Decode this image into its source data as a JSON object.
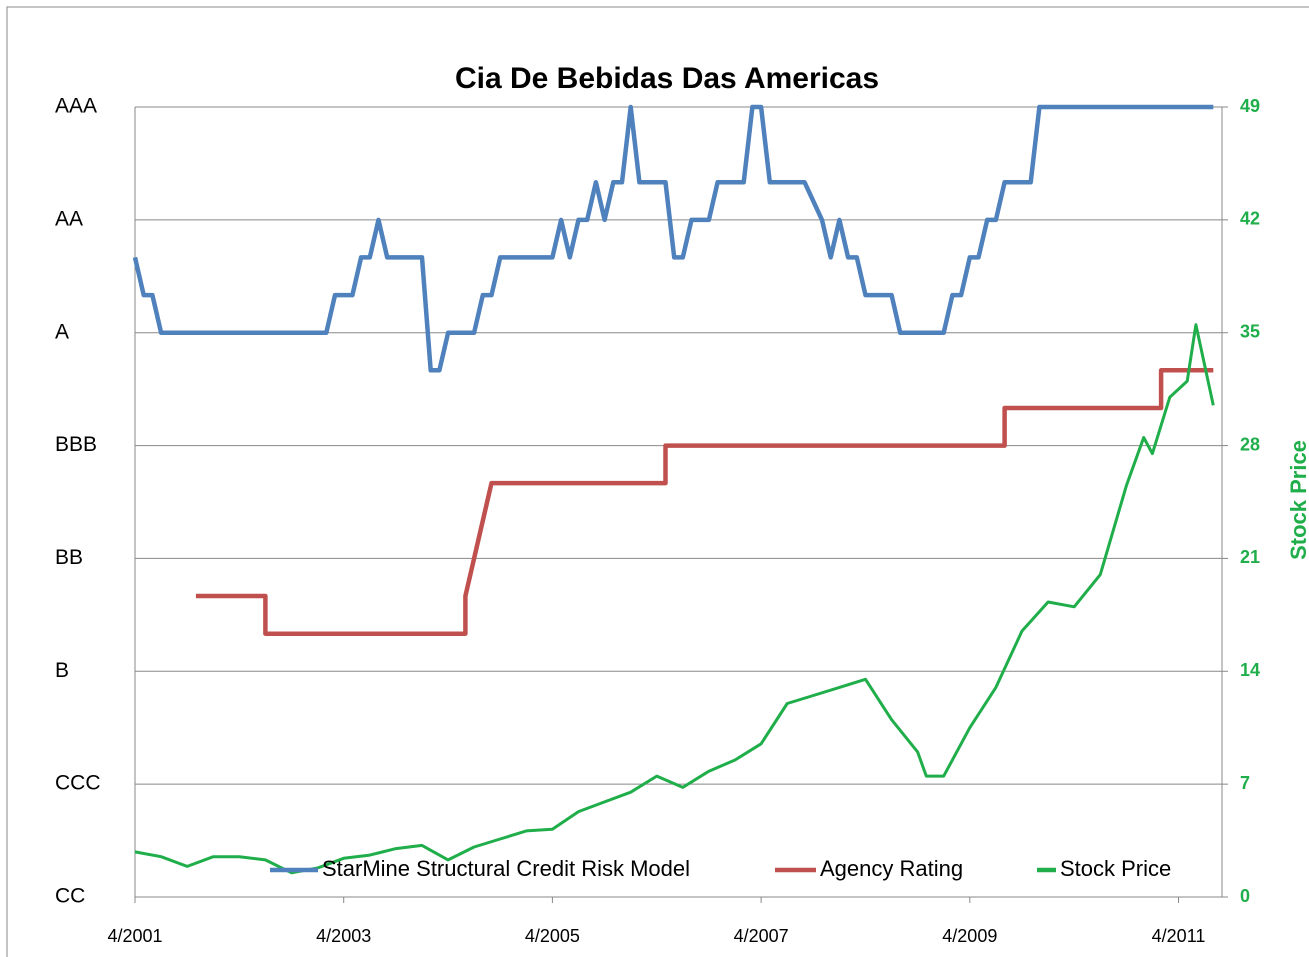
{
  "chart_data": {
    "type": "line",
    "title": "Cia De Bebidas Das Americas",
    "y2label": "Stock Price",
    "xlim": [
      "2001-04",
      "2011-09"
    ],
    "xticks": [
      {
        "value": "2001-04",
        "label": "4/2001"
      },
      {
        "value": "2003-04",
        "label": "4/2003"
      },
      {
        "value": "2005-04",
        "label": "4/2005"
      },
      {
        "value": "2007-04",
        "label": "4/2007"
      },
      {
        "value": "2009-04",
        "label": "4/2009"
      },
      {
        "value": "2011-04",
        "label": "4/2011"
      }
    ],
    "ylim": [
      0,
      49
    ],
    "yticks": [
      {
        "value": 0,
        "label": "CC"
      },
      {
        "value": 7,
        "label": "CCC"
      },
      {
        "value": 14,
        "label": "B"
      },
      {
        "value": 21,
        "label": "BB"
      },
      {
        "value": 28,
        "label": "BBB"
      },
      {
        "value": 35,
        "label": "A"
      },
      {
        "value": 42,
        "label": "AA"
      },
      {
        "value": 49,
        "label": "AAA"
      }
    ],
    "y2lim": [
      0,
      49
    ],
    "y2ticks": [
      0,
      7,
      14,
      21,
      28,
      35,
      42,
      49
    ],
    "grid": true,
    "legend": "bottom",
    "series": [
      {
        "name": "StarMine Structural Credit Risk Model",
        "color": "#4f81bd",
        "axis": "y",
        "x": [
          "2001-04",
          "2001-05",
          "2001-06",
          "2001-07",
          "2003-02",
          "2003-03",
          "2003-05",
          "2003-06",
          "2003-07",
          "2003-08",
          "2003-09",
          "2004-01",
          "2004-02",
          "2004-03",
          "2004-04",
          "2004-07",
          "2004-08",
          "2004-09",
          "2004-10",
          "2005-04",
          "2005-05",
          "2005-06",
          "2005-07",
          "2005-08",
          "2005-09",
          "2005-10",
          "2005-11",
          "2005-12",
          "2006-01",
          "2006-02",
          "2006-05",
          "2006-06",
          "2006-07",
          "2006-08",
          "2006-10",
          "2006-11",
          "2007-02",
          "2007-03",
          "2007-04",
          "2007-05",
          "2007-09",
          "2007-11",
          "2007-12",
          "2008-01",
          "2008-02",
          "2008-03",
          "2008-04",
          "2008-07",
          "2008-08",
          "2009-01",
          "2009-02",
          "2009-03",
          "2009-04",
          "2009-05",
          "2009-06",
          "2009-07",
          "2009-08",
          "2009-11",
          "2009-12",
          "2011-08"
        ],
        "values": [
          39.67,
          37.33,
          37.33,
          35,
          35,
          37.33,
          37.33,
          39.67,
          39.67,
          42,
          39.67,
          39.67,
          32.67,
          32.67,
          35,
          35,
          37.33,
          37.33,
          39.67,
          39.67,
          42,
          39.67,
          42,
          42,
          44.33,
          42,
          44.33,
          44.33,
          49,
          44.33,
          44.33,
          39.67,
          39.67,
          42,
          42,
          44.33,
          44.33,
          49,
          49,
          44.33,
          44.33,
          42,
          39.67,
          42,
          39.67,
          39.67,
          37.33,
          37.33,
          35,
          35,
          37.33,
          37.33,
          39.67,
          39.67,
          42,
          42,
          44.33,
          44.33,
          49,
          49
        ]
      },
      {
        "name": "Agency Rating",
        "color": "#c0504d",
        "axis": "y",
        "x": [
          "2001-11",
          "2002-07",
          "2002-07",
          "2004-06",
          "2004-06",
          "2004-09",
          "2006-05",
          "2006-05",
          "2009-08",
          "2009-08",
          "2011-02",
          "2011-02",
          "2011-08"
        ],
        "values": [
          18.67,
          18.67,
          16.33,
          16.33,
          18.67,
          25.67,
          25.67,
          28,
          28,
          30.33,
          30.33,
          32.67,
          32.67
        ]
      },
      {
        "name": "Stock Price",
        "color": "#1fae4a",
        "axis": "y2",
        "x": [
          "2001-04",
          "2001-07",
          "2001-10",
          "2002-01",
          "2002-04",
          "2002-07",
          "2002-10",
          "2003-01",
          "2003-04",
          "2003-07",
          "2003-10",
          "2004-01",
          "2004-04",
          "2004-07",
          "2004-10",
          "2005-01",
          "2005-04",
          "2005-07",
          "2005-10",
          "2006-01",
          "2006-04",
          "2006-07",
          "2006-10",
          "2007-01",
          "2007-04",
          "2007-07",
          "2007-10",
          "2008-01",
          "2008-04",
          "2008-07",
          "2008-10",
          "2008-11",
          "2009-01",
          "2009-04",
          "2009-07",
          "2009-10",
          "2010-01",
          "2010-04",
          "2010-07",
          "2010-10",
          "2010-12",
          "2011-01",
          "2011-03",
          "2011-05",
          "2011-06",
          "2011-07",
          "2011-08"
        ],
        "values": [
          2.8,
          2.5,
          1.9,
          2.5,
          2.5,
          2.3,
          1.5,
          1.8,
          2.4,
          2.6,
          3.0,
          3.2,
          2.3,
          3.1,
          3.6,
          4.1,
          4.2,
          5.3,
          5.9,
          6.5,
          7.5,
          6.8,
          7.8,
          8.5,
          9.5,
          12.0,
          12.5,
          13.0,
          13.5,
          11.0,
          9.0,
          7.5,
          7.5,
          10.5,
          13.0,
          16.5,
          18.3,
          18.0,
          20.0,
          25.5,
          28.5,
          27.5,
          31.0,
          32.0,
          35.5,
          33.0,
          30.5
        ]
      }
    ]
  }
}
